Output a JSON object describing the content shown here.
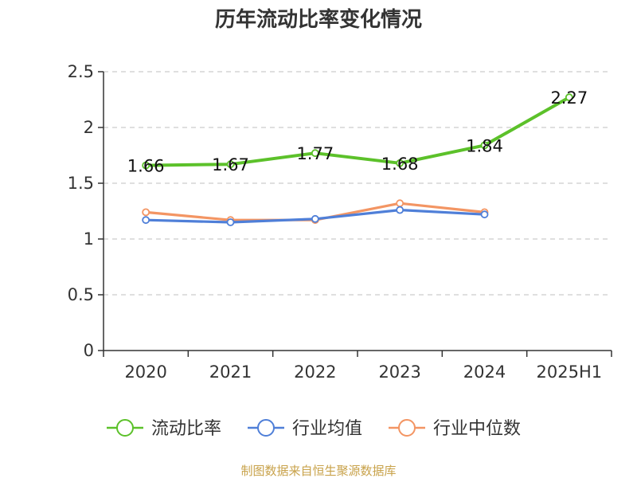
{
  "chart_data": {
    "type": "line",
    "title": "历年流动比率变化情况",
    "categories": [
      "2020",
      "2021",
      "2022",
      "2023",
      "2024",
      "2025H1"
    ],
    "ylim": [
      0,
      2.5
    ],
    "yticks": [
      "0",
      "0.5",
      "1",
      "1.5",
      "2",
      "2.5"
    ],
    "grid": true,
    "legend_position": "bottom",
    "series": [
      {
        "name": "流动比率",
        "color": "#5cc12a",
        "values": [
          1.66,
          1.67,
          1.77,
          1.68,
          1.84,
          2.27
        ],
        "labels": [
          "1.66",
          "1.67",
          "1.77",
          "1.68",
          "1.84",
          "2.27"
        ]
      },
      {
        "name": "行业均值",
        "color": "#4f7fd8",
        "values": [
          1.17,
          1.15,
          1.18,
          1.26,
          1.22,
          null
        ]
      },
      {
        "name": "行业中位数",
        "color": "#f39563",
        "values": [
          1.24,
          1.17,
          1.17,
          1.32,
          1.24,
          null
        ]
      }
    ]
  },
  "source": "制图数据来自恒生聚源数据库"
}
